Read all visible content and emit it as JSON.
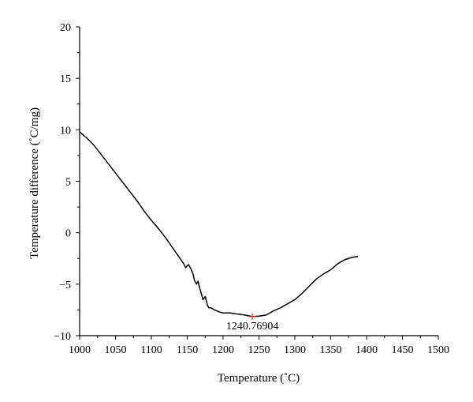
{
  "chart_data": {
    "type": "line",
    "xlabel": "Temperature (˚C)",
    "ylabel": "Temperature difference (˚C/mg)",
    "xlim": [
      1000,
      1500
    ],
    "ylim": [
      -10,
      20
    ],
    "x_ticks": [
      1000,
      1050,
      1100,
      1150,
      1200,
      1250,
      1300,
      1350,
      1400,
      1450,
      1500
    ],
    "y_ticks": [
      -10,
      -5,
      0,
      5,
      10,
      15,
      20
    ],
    "grid": false,
    "series": [
      {
        "color": "#000000",
        "points": [
          [
            1000,
            9.8
          ],
          [
            1010,
            9.2
          ],
          [
            1020,
            8.5
          ],
          [
            1030,
            7.6
          ],
          [
            1040,
            6.7
          ],
          [
            1050,
            5.8
          ],
          [
            1060,
            4.9
          ],
          [
            1070,
            4.0
          ],
          [
            1080,
            3.1
          ],
          [
            1090,
            2.1
          ],
          [
            1100,
            1.2
          ],
          [
            1110,
            0.4
          ],
          [
            1120,
            -0.5
          ],
          [
            1130,
            -1.5
          ],
          [
            1140,
            -2.5
          ],
          [
            1145,
            -3.0
          ],
          [
            1148,
            -3.4
          ],
          [
            1150,
            -3.2
          ],
          [
            1152,
            -3.1
          ],
          [
            1155,
            -3.5
          ],
          [
            1158,
            -4.0
          ],
          [
            1160,
            -4.6
          ],
          [
            1163,
            -5.0
          ],
          [
            1165,
            -4.7
          ],
          [
            1167,
            -5.3
          ],
          [
            1170,
            -6.0
          ],
          [
            1172,
            -6.5
          ],
          [
            1175,
            -6.2
          ],
          [
            1178,
            -7.0
          ],
          [
            1180,
            -7.3
          ],
          [
            1183,
            -7.3
          ],
          [
            1188,
            -7.5
          ],
          [
            1195,
            -7.7
          ],
          [
            1200,
            -7.8
          ],
          [
            1210,
            -7.8
          ],
          [
            1220,
            -7.9
          ],
          [
            1230,
            -8.0
          ],
          [
            1240.77,
            -8.15
          ],
          [
            1250,
            -8.1
          ],
          [
            1260,
            -8.0
          ],
          [
            1270,
            -7.6
          ],
          [
            1280,
            -7.3
          ],
          [
            1290,
            -6.9
          ],
          [
            1300,
            -6.5
          ],
          [
            1310,
            -5.9
          ],
          [
            1320,
            -5.2
          ],
          [
            1330,
            -4.5
          ],
          [
            1340,
            -4.0
          ],
          [
            1350,
            -3.6
          ],
          [
            1360,
            -3.0
          ],
          [
            1370,
            -2.6
          ],
          [
            1380,
            -2.4
          ],
          [
            1388,
            -2.3
          ]
        ]
      }
    ],
    "annotations": [
      {
        "label": "1240.76904",
        "x": 1240.77,
        "y": -8.15,
        "marker_color": "#e03030"
      }
    ]
  }
}
